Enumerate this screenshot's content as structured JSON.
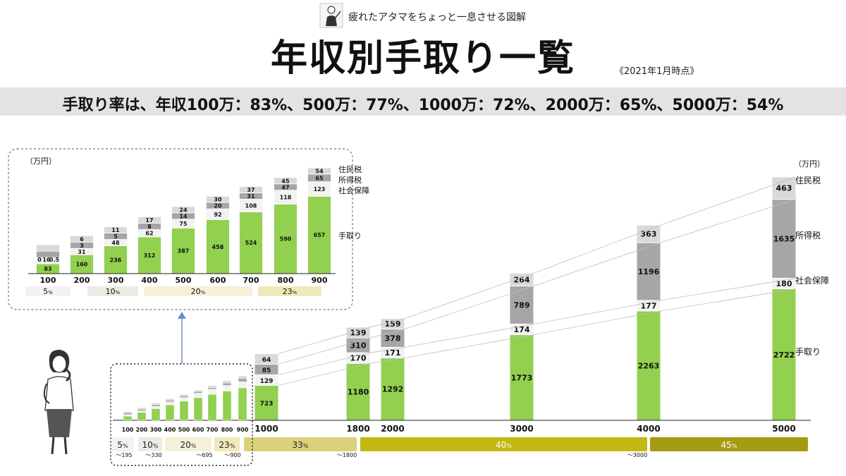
{
  "header": {
    "tagline": "疲れたアタマをちょっと一息させる図解",
    "title": "年収別手取り一覧",
    "as_of": "《2021年1月時点》",
    "summary": "手取り率は、年収100万：83%、500万：77%、1000万：72%、2000万：65%、5000万：54%"
  },
  "colors": {
    "takehome": "#92d050",
    "social": "#f2f2f2",
    "income_tax": "#a6a6a6",
    "resident_tax": "#d9d9d9",
    "bracket_5": "#f2f2f2",
    "bracket_10": "#ecebe3",
    "bracket_20": "#f4f1d8",
    "bracket_23": "#efe9b9",
    "bracket_33": "#dbd07c",
    "bracket_40": "#c4b815",
    "bracket_45": "#a59b10"
  },
  "chart_data": [
    {
      "type": "bar",
      "stacked": true,
      "unit": "（万円）",
      "categories": [
        "1000",
        "1800",
        "2000",
        "3000",
        "4000",
        "5000"
      ],
      "series": [
        {
          "name": "手取り",
          "values": [
            723,
            1180,
            1292,
            1773,
            2263,
            2722
          ]
        },
        {
          "name": "社会保障",
          "values": [
            129,
            170,
            171,
            174,
            177,
            180
          ]
        },
        {
          "name": "所得税",
          "values": [
            85,
            310,
            378,
            789,
            1196,
            1635
          ]
        },
        {
          "name": "住民税",
          "values": [
            64,
            139,
            159,
            264,
            363,
            463
          ]
        }
      ],
      "brackets": [
        {
          "rate": "5",
          "upper": "～195"
        },
        {
          "rate": "10",
          "upper": "～330"
        },
        {
          "rate": "20",
          "upper": "～695"
        },
        {
          "rate": "23",
          "upper": "～900"
        },
        {
          "rate": "33",
          "upper": "～1800"
        },
        {
          "rate": "40",
          "upper": "～3000"
        },
        {
          "rate": "45",
          "upper": ""
        }
      ],
      "percent_sign": "%"
    },
    {
      "type": "bar",
      "stacked": true,
      "unit": "（万円）",
      "categories": [
        "100",
        "200",
        "300",
        "400",
        "500",
        "600",
        "700",
        "800",
        "900"
      ],
      "series": [
        {
          "name": "手取り",
          "values": [
            83,
            160,
            236,
            312,
            387,
            458,
            524,
            590,
            657
          ]
        },
        {
          "name": "社会保障",
          "values": [
            16,
            31,
            48,
            62,
            75,
            92,
            108,
            118,
            123
          ]
        },
        {
          "name": "所得税",
          "values": [
            0.5,
            3,
            5,
            8,
            14,
            20,
            31,
            47,
            65
          ]
        },
        {
          "name": "住民税",
          "values": [
            0,
            6,
            11,
            17,
            24,
            30,
            37,
            45,
            54
          ]
        }
      ],
      "brackets": [
        {
          "rate": "5"
        },
        {
          "rate": "10"
        },
        {
          "rate": "20"
        },
        {
          "rate": "23"
        }
      ]
    }
  ]
}
